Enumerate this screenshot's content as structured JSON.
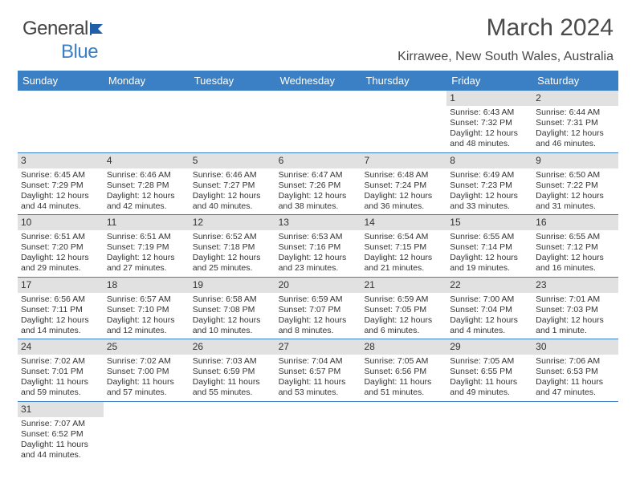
{
  "brand": {
    "part1": "General",
    "part2": "Blue"
  },
  "title": "March 2024",
  "location": "Kirrawee, New South Wales, Australia",
  "header_bg": "#3b7fc4",
  "daynum_bg": "#e1e1e1",
  "row_border": "#3b7fc4",
  "day_names": [
    "Sunday",
    "Monday",
    "Tuesday",
    "Wednesday",
    "Thursday",
    "Friday",
    "Saturday"
  ],
  "weeks": [
    [
      null,
      null,
      null,
      null,
      null,
      {
        "n": "1",
        "sr": "Sunrise: 6:43 AM",
        "ss": "Sunset: 7:32 PM",
        "d1": "Daylight: 12 hours",
        "d2": "and 48 minutes."
      },
      {
        "n": "2",
        "sr": "Sunrise: 6:44 AM",
        "ss": "Sunset: 7:31 PM",
        "d1": "Daylight: 12 hours",
        "d2": "and 46 minutes."
      }
    ],
    [
      {
        "n": "3",
        "sr": "Sunrise: 6:45 AM",
        "ss": "Sunset: 7:29 PM",
        "d1": "Daylight: 12 hours",
        "d2": "and 44 minutes."
      },
      {
        "n": "4",
        "sr": "Sunrise: 6:46 AM",
        "ss": "Sunset: 7:28 PM",
        "d1": "Daylight: 12 hours",
        "d2": "and 42 minutes."
      },
      {
        "n": "5",
        "sr": "Sunrise: 6:46 AM",
        "ss": "Sunset: 7:27 PM",
        "d1": "Daylight: 12 hours",
        "d2": "and 40 minutes."
      },
      {
        "n": "6",
        "sr": "Sunrise: 6:47 AM",
        "ss": "Sunset: 7:26 PM",
        "d1": "Daylight: 12 hours",
        "d2": "and 38 minutes."
      },
      {
        "n": "7",
        "sr": "Sunrise: 6:48 AM",
        "ss": "Sunset: 7:24 PM",
        "d1": "Daylight: 12 hours",
        "d2": "and 36 minutes."
      },
      {
        "n": "8",
        "sr": "Sunrise: 6:49 AM",
        "ss": "Sunset: 7:23 PM",
        "d1": "Daylight: 12 hours",
        "d2": "and 33 minutes."
      },
      {
        "n": "9",
        "sr": "Sunrise: 6:50 AM",
        "ss": "Sunset: 7:22 PM",
        "d1": "Daylight: 12 hours",
        "d2": "and 31 minutes."
      }
    ],
    [
      {
        "n": "10",
        "sr": "Sunrise: 6:51 AM",
        "ss": "Sunset: 7:20 PM",
        "d1": "Daylight: 12 hours",
        "d2": "and 29 minutes."
      },
      {
        "n": "11",
        "sr": "Sunrise: 6:51 AM",
        "ss": "Sunset: 7:19 PM",
        "d1": "Daylight: 12 hours",
        "d2": "and 27 minutes."
      },
      {
        "n": "12",
        "sr": "Sunrise: 6:52 AM",
        "ss": "Sunset: 7:18 PM",
        "d1": "Daylight: 12 hours",
        "d2": "and 25 minutes."
      },
      {
        "n": "13",
        "sr": "Sunrise: 6:53 AM",
        "ss": "Sunset: 7:16 PM",
        "d1": "Daylight: 12 hours",
        "d2": "and 23 minutes."
      },
      {
        "n": "14",
        "sr": "Sunrise: 6:54 AM",
        "ss": "Sunset: 7:15 PM",
        "d1": "Daylight: 12 hours",
        "d2": "and 21 minutes."
      },
      {
        "n": "15",
        "sr": "Sunrise: 6:55 AM",
        "ss": "Sunset: 7:14 PM",
        "d1": "Daylight: 12 hours",
        "d2": "and 19 minutes."
      },
      {
        "n": "16",
        "sr": "Sunrise: 6:55 AM",
        "ss": "Sunset: 7:12 PM",
        "d1": "Daylight: 12 hours",
        "d2": "and 16 minutes."
      }
    ],
    [
      {
        "n": "17",
        "sr": "Sunrise: 6:56 AM",
        "ss": "Sunset: 7:11 PM",
        "d1": "Daylight: 12 hours",
        "d2": "and 14 minutes."
      },
      {
        "n": "18",
        "sr": "Sunrise: 6:57 AM",
        "ss": "Sunset: 7:10 PM",
        "d1": "Daylight: 12 hours",
        "d2": "and 12 minutes."
      },
      {
        "n": "19",
        "sr": "Sunrise: 6:58 AM",
        "ss": "Sunset: 7:08 PM",
        "d1": "Daylight: 12 hours",
        "d2": "and 10 minutes."
      },
      {
        "n": "20",
        "sr": "Sunrise: 6:59 AM",
        "ss": "Sunset: 7:07 PM",
        "d1": "Daylight: 12 hours",
        "d2": "and 8 minutes."
      },
      {
        "n": "21",
        "sr": "Sunrise: 6:59 AM",
        "ss": "Sunset: 7:05 PM",
        "d1": "Daylight: 12 hours",
        "d2": "and 6 minutes."
      },
      {
        "n": "22",
        "sr": "Sunrise: 7:00 AM",
        "ss": "Sunset: 7:04 PM",
        "d1": "Daylight: 12 hours",
        "d2": "and 4 minutes."
      },
      {
        "n": "23",
        "sr": "Sunrise: 7:01 AM",
        "ss": "Sunset: 7:03 PM",
        "d1": "Daylight: 12 hours",
        "d2": "and 1 minute."
      }
    ],
    [
      {
        "n": "24",
        "sr": "Sunrise: 7:02 AM",
        "ss": "Sunset: 7:01 PM",
        "d1": "Daylight: 11 hours",
        "d2": "and 59 minutes."
      },
      {
        "n": "25",
        "sr": "Sunrise: 7:02 AM",
        "ss": "Sunset: 7:00 PM",
        "d1": "Daylight: 11 hours",
        "d2": "and 57 minutes."
      },
      {
        "n": "26",
        "sr": "Sunrise: 7:03 AM",
        "ss": "Sunset: 6:59 PM",
        "d1": "Daylight: 11 hours",
        "d2": "and 55 minutes."
      },
      {
        "n": "27",
        "sr": "Sunrise: 7:04 AM",
        "ss": "Sunset: 6:57 PM",
        "d1": "Daylight: 11 hours",
        "d2": "and 53 minutes."
      },
      {
        "n": "28",
        "sr": "Sunrise: 7:05 AM",
        "ss": "Sunset: 6:56 PM",
        "d1": "Daylight: 11 hours",
        "d2": "and 51 minutes."
      },
      {
        "n": "29",
        "sr": "Sunrise: 7:05 AM",
        "ss": "Sunset: 6:55 PM",
        "d1": "Daylight: 11 hours",
        "d2": "and 49 minutes."
      },
      {
        "n": "30",
        "sr": "Sunrise: 7:06 AM",
        "ss": "Sunset: 6:53 PM",
        "d1": "Daylight: 11 hours",
        "d2": "and 47 minutes."
      }
    ],
    [
      {
        "n": "31",
        "sr": "Sunrise: 7:07 AM",
        "ss": "Sunset: 6:52 PM",
        "d1": "Daylight: 11 hours",
        "d2": "and 44 minutes."
      },
      null,
      null,
      null,
      null,
      null,
      null
    ]
  ]
}
